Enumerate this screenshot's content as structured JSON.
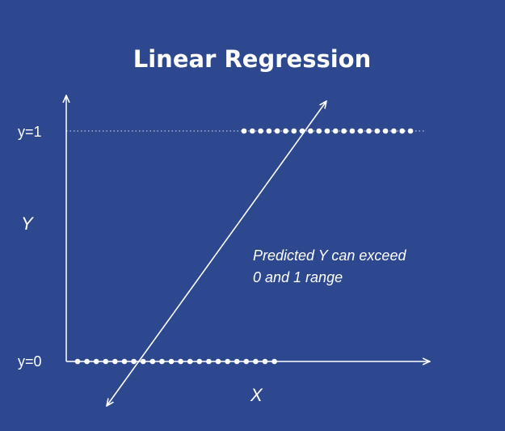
{
  "chart_data": {
    "type": "scatter",
    "title": "Linear Regression",
    "xlabel": "X",
    "ylabel": "Y",
    "y_ticks": [
      {
        "value": 1,
        "label": "y=1"
      },
      {
        "value": 0,
        "label": "y=0"
      }
    ],
    "gridline_dotted_at": 1,
    "series": [
      {
        "values": [
          0,
          0,
          0,
          0,
          0,
          0,
          0,
          0,
          0,
          0,
          0,
          0,
          0,
          0,
          0,
          0,
          0,
          0,
          0,
          0,
          0,
          0
        ]
      },
      {
        "values": [
          1,
          1,
          1,
          1,
          1,
          1,
          1,
          1,
          1,
          1,
          1,
          1,
          1,
          1,
          1,
          1,
          1,
          1,
          1,
          1,
          1
        ]
      }
    ],
    "annotation": {
      "lines": [
        "Predicted Y can exceed",
        "0 and 1 range"
      ]
    },
    "colors": {
      "background": "#2e4890",
      "foreground": "#ffffff"
    }
  }
}
